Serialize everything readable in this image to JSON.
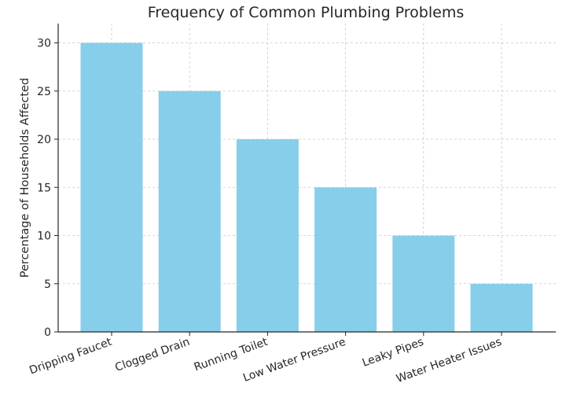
{
  "chart_data": {
    "type": "bar",
    "title": "Frequency of Common Plumbing Problems",
    "xlabel": "",
    "ylabel": "Percentage of Households Affected",
    "categories": [
      "Dripping Faucet",
      "Clogged Drain",
      "Running Toilet",
      "Low Water Pressure",
      "Leaky Pipes",
      "Water Heater Issues"
    ],
    "values": [
      30,
      25,
      20,
      15,
      10,
      5
    ],
    "ylim": [
      0,
      32
    ],
    "yticks": [
      0,
      5,
      10,
      15,
      20,
      25,
      30
    ],
    "grid": true,
    "bar_color": "#87CEEB"
  }
}
